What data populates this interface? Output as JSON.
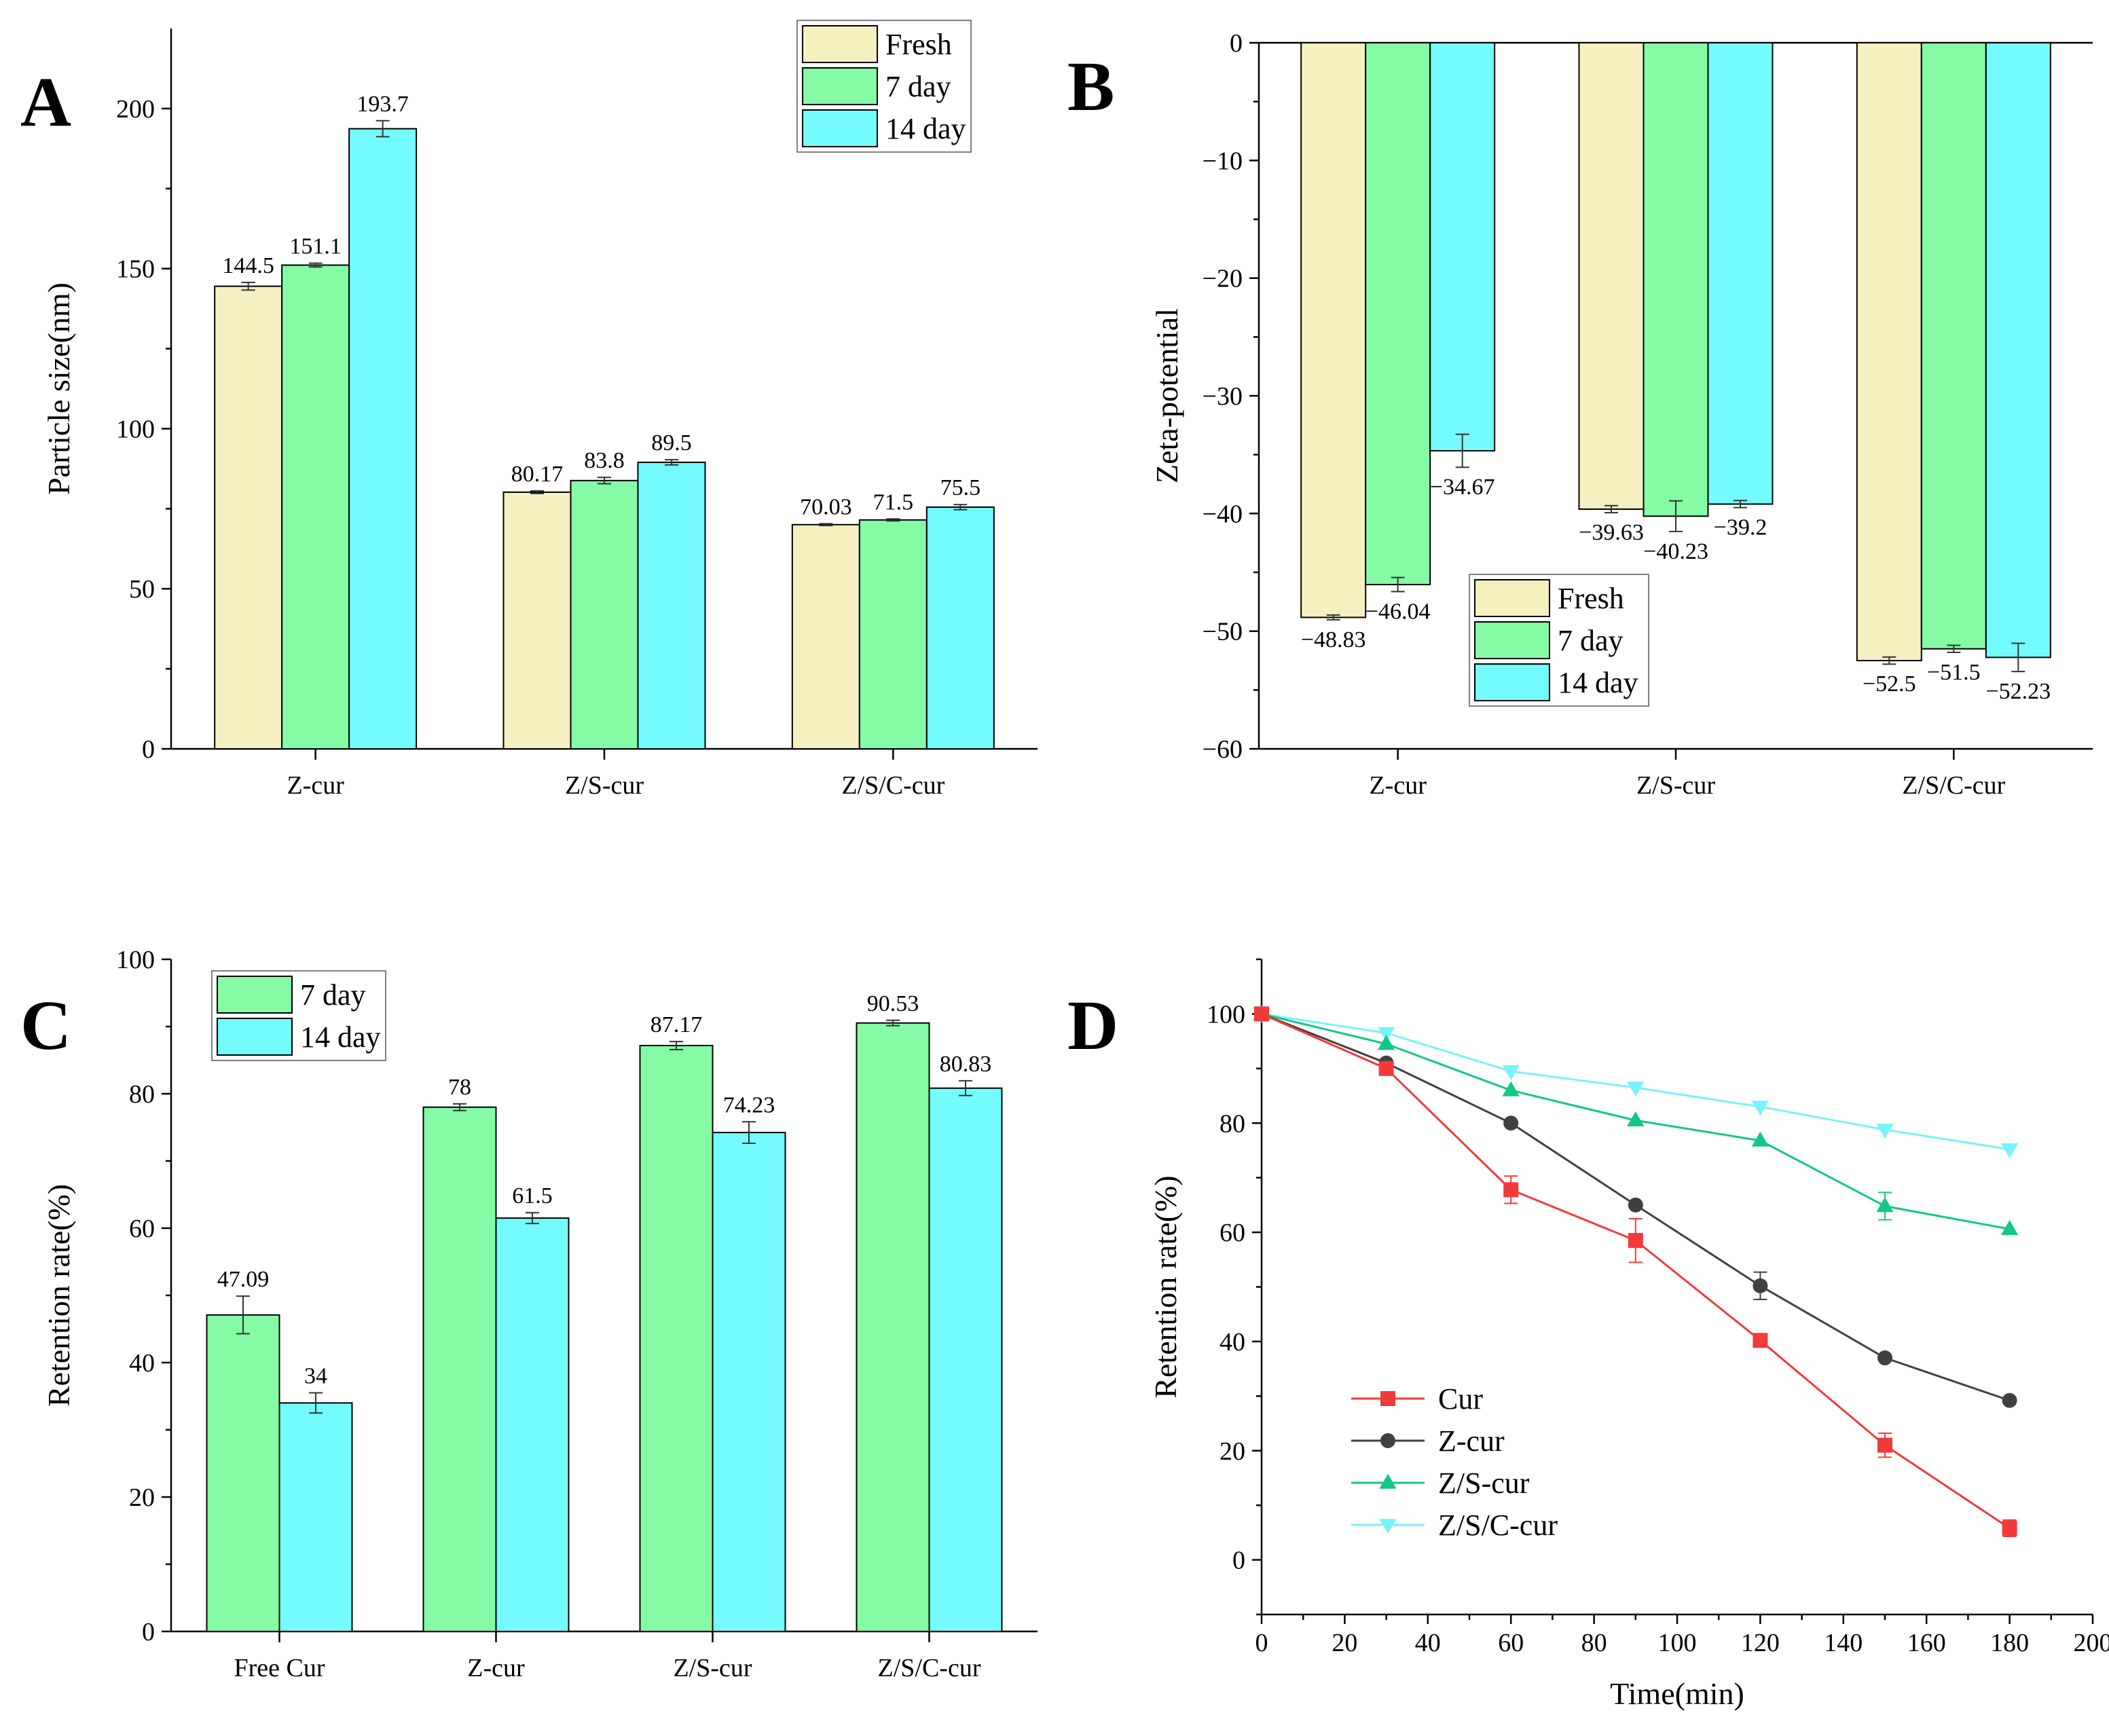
{
  "colors": {
    "fresh": "#f5f0c0",
    "day7": "#86fba6",
    "day14": "#74fbfd",
    "cur": "#f23a3a",
    "zcur": "#404040",
    "zscur": "#12c983",
    "zsccur": "#78f3fb"
  },
  "chart_data": [
    {
      "panel": "A",
      "type": "bar",
      "categories": [
        "Z-cur",
        "Z/S-cur",
        "Z/S/C-cur"
      ],
      "ylabel": "Particle size(nm)",
      "xlabel": "",
      "ylim": [
        0,
        225
      ],
      "yticks": [
        0,
        50,
        100,
        150,
        200
      ],
      "legend_position": "top-right",
      "series": [
        {
          "name": "Fresh",
          "color_key": "fresh",
          "values": [
            144.5,
            80.17,
            70.03
          ],
          "labels": [
            "144.5",
            "80.17",
            "70.03"
          ],
          "errors": [
            1.2,
            0.4,
            0.3
          ]
        },
        {
          "name": "7 day",
          "color_key": "day7",
          "values": [
            151.1,
            83.8,
            71.5
          ],
          "labels": [
            "151.1",
            "83.8",
            "71.5"
          ],
          "errors": [
            0.6,
            1.0,
            0.3
          ]
        },
        {
          "name": "14 day",
          "color_key": "day14",
          "values": [
            193.7,
            89.5,
            75.5
          ],
          "labels": [
            "193.7",
            "89.5",
            "75.5"
          ],
          "errors": [
            2.5,
            0.8,
            0.8
          ]
        }
      ]
    },
    {
      "panel": "B",
      "type": "bar",
      "categories": [
        "Z-cur",
        "Z/S-cur",
        "Z/S/C-cur"
      ],
      "ylabel": "Zeta-potential",
      "xlabel": "",
      "ylim": [
        -60,
        0
      ],
      "yticks": [
        0,
        -10,
        -20,
        -30,
        -40,
        -50,
        -60
      ],
      "legend_position": "bottom-left",
      "series": [
        {
          "name": "Fresh",
          "color_key": "fresh",
          "values": [
            -48.83,
            -39.63,
            -52.5
          ],
          "labels": [
            "−48.83",
            "−39.63",
            "−52.5"
          ],
          "errors": [
            0.2,
            0.3,
            0.3
          ]
        },
        {
          "name": "7 day",
          "color_key": "day7",
          "values": [
            -46.04,
            -40.23,
            -51.5
          ],
          "labels": [
            "−46.04",
            "−40.23",
            "−51.5"
          ],
          "errors": [
            0.6,
            1.3,
            0.3
          ]
        },
        {
          "name": "14 day",
          "color_key": "day14",
          "values": [
            -34.67,
            -39.2,
            -52.23
          ],
          "labels": [
            "−34.67",
            "−39.2",
            "−52.23"
          ],
          "errors": [
            1.4,
            0.3,
            1.2
          ]
        }
      ]
    },
    {
      "panel": "C",
      "type": "bar",
      "categories": [
        "Free Cur",
        "Z-cur",
        "Z/S-cur",
        "Z/S/C-cur"
      ],
      "ylabel": "Retention rate(%)",
      "xlabel": "",
      "ylim": [
        0,
        100
      ],
      "yticks": [
        0,
        20,
        40,
        60,
        80,
        100
      ],
      "legend_position": "top-left",
      "series": [
        {
          "name": "7 day",
          "color_key": "day7",
          "values": [
            47.09,
            78,
            87.17,
            90.53
          ],
          "labels": [
            "47.09",
            "78",
            "87.17",
            "90.53"
          ],
          "errors": [
            2.8,
            0.5,
            0.6,
            0.4
          ]
        },
        {
          "name": "14 day",
          "color_key": "day14",
          "values": [
            34,
            61.5,
            74.23,
            80.83
          ],
          "labels": [
            "34",
            "61.5",
            "74.23",
            "80.83"
          ],
          "errors": [
            1.5,
            0.8,
            1.6,
            1.1
          ]
        }
      ]
    },
    {
      "panel": "D",
      "type": "line",
      "x": [
        0,
        30,
        60,
        90,
        120,
        150,
        180
      ],
      "xlabel": "Time(min)",
      "ylabel": "Retention rate(%)",
      "xlim": [
        0,
        200
      ],
      "ylim": [
        -10,
        110
      ],
      "xticks": [
        0,
        20,
        40,
        60,
        80,
        100,
        120,
        140,
        160,
        180,
        200
      ],
      "yticks": [
        0,
        20,
        40,
        60,
        80,
        100
      ],
      "legend_position": "bottom-left",
      "series": [
        {
          "name": "Cur",
          "color_key": "cur",
          "marker": "square",
          "values": [
            100,
            90,
            67.8,
            58.5,
            40.2,
            21,
            5.8
          ],
          "errors": [
            0,
            0,
            2.5,
            4,
            0,
            2.2,
            1.5
          ]
        },
        {
          "name": "Z-cur",
          "color_key": "zcur",
          "marker": "circle",
          "values": [
            100,
            91,
            80,
            65,
            50.2,
            37,
            29.2
          ],
          "errors": [
            0,
            0,
            0,
            0,
            2.5,
            0,
            0
          ]
        },
        {
          "name": "Z/S-cur",
          "color_key": "zscur",
          "marker": "triangle-up",
          "values": [
            100,
            94.5,
            86,
            80.5,
            76.8,
            64.8,
            60.6
          ],
          "errors": [
            0,
            0,
            0,
            0,
            0,
            2.5,
            0
          ]
        },
        {
          "name": "Z/S/C-cur",
          "color_key": "zsccur",
          "marker": "triangle-down",
          "values": [
            100,
            96.5,
            89.5,
            86.5,
            83,
            78.8,
            75.2
          ],
          "errors": [
            0,
            0,
            0,
            0,
            0,
            0,
            0
          ]
        }
      ]
    }
  ]
}
